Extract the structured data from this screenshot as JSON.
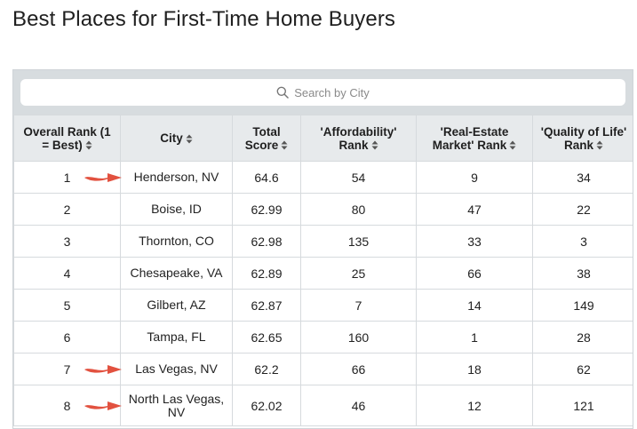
{
  "page": {
    "title": "Best Places for First-Time Home Buyers"
  },
  "search": {
    "placeholder": "Search by City",
    "icon": "search-icon"
  },
  "colors": {
    "header_bg": "#e7eaec",
    "search_bg": "#d7dcdf",
    "arrow": "#e2513f",
    "border": "#d6dadd"
  },
  "table": {
    "columns": [
      {
        "label": "Overall Rank (1 = Best)",
        "sort_icon": "sort-icon"
      },
      {
        "label": "City",
        "sort_icon": "sort-icon"
      },
      {
        "label": "Total Score",
        "sort_icon": "sort-icon"
      },
      {
        "label": "'Affordability' Rank",
        "sort_icon": "sort-icon"
      },
      {
        "label": "'Real-Estate Market' Rank",
        "sort_icon": "sort-icon"
      },
      {
        "label": "'Quality of Life' Rank",
        "sort_icon": "sort-icon"
      }
    ],
    "rows": [
      {
        "rank": "1",
        "city": "Henderson, NV",
        "score": "64.6",
        "affordability": "54",
        "market": "9",
        "quality": "34",
        "highlighted": true
      },
      {
        "rank": "2",
        "city": "Boise, ID",
        "score": "62.99",
        "affordability": "80",
        "market": "47",
        "quality": "22",
        "highlighted": false
      },
      {
        "rank": "3",
        "city": "Thornton, CO",
        "score": "62.98",
        "affordability": "135",
        "market": "33",
        "quality": "3",
        "highlighted": false
      },
      {
        "rank": "4",
        "city": "Chesapeake, VA",
        "score": "62.89",
        "affordability": "25",
        "market": "66",
        "quality": "38",
        "highlighted": false
      },
      {
        "rank": "5",
        "city": "Gilbert, AZ",
        "score": "62.87",
        "affordability": "7",
        "market": "14",
        "quality": "149",
        "highlighted": false
      },
      {
        "rank": "6",
        "city": "Tampa, FL",
        "score": "62.65",
        "affordability": "160",
        "market": "1",
        "quality": "28",
        "highlighted": false
      },
      {
        "rank": "7",
        "city": "Las Vegas, NV",
        "score": "62.2",
        "affordability": "66",
        "market": "18",
        "quality": "62",
        "highlighted": true
      },
      {
        "rank": "8",
        "city": "North Las Vegas, NV",
        "score": "62.02",
        "affordability": "46",
        "market": "12",
        "quality": "121",
        "highlighted": true
      }
    ]
  }
}
